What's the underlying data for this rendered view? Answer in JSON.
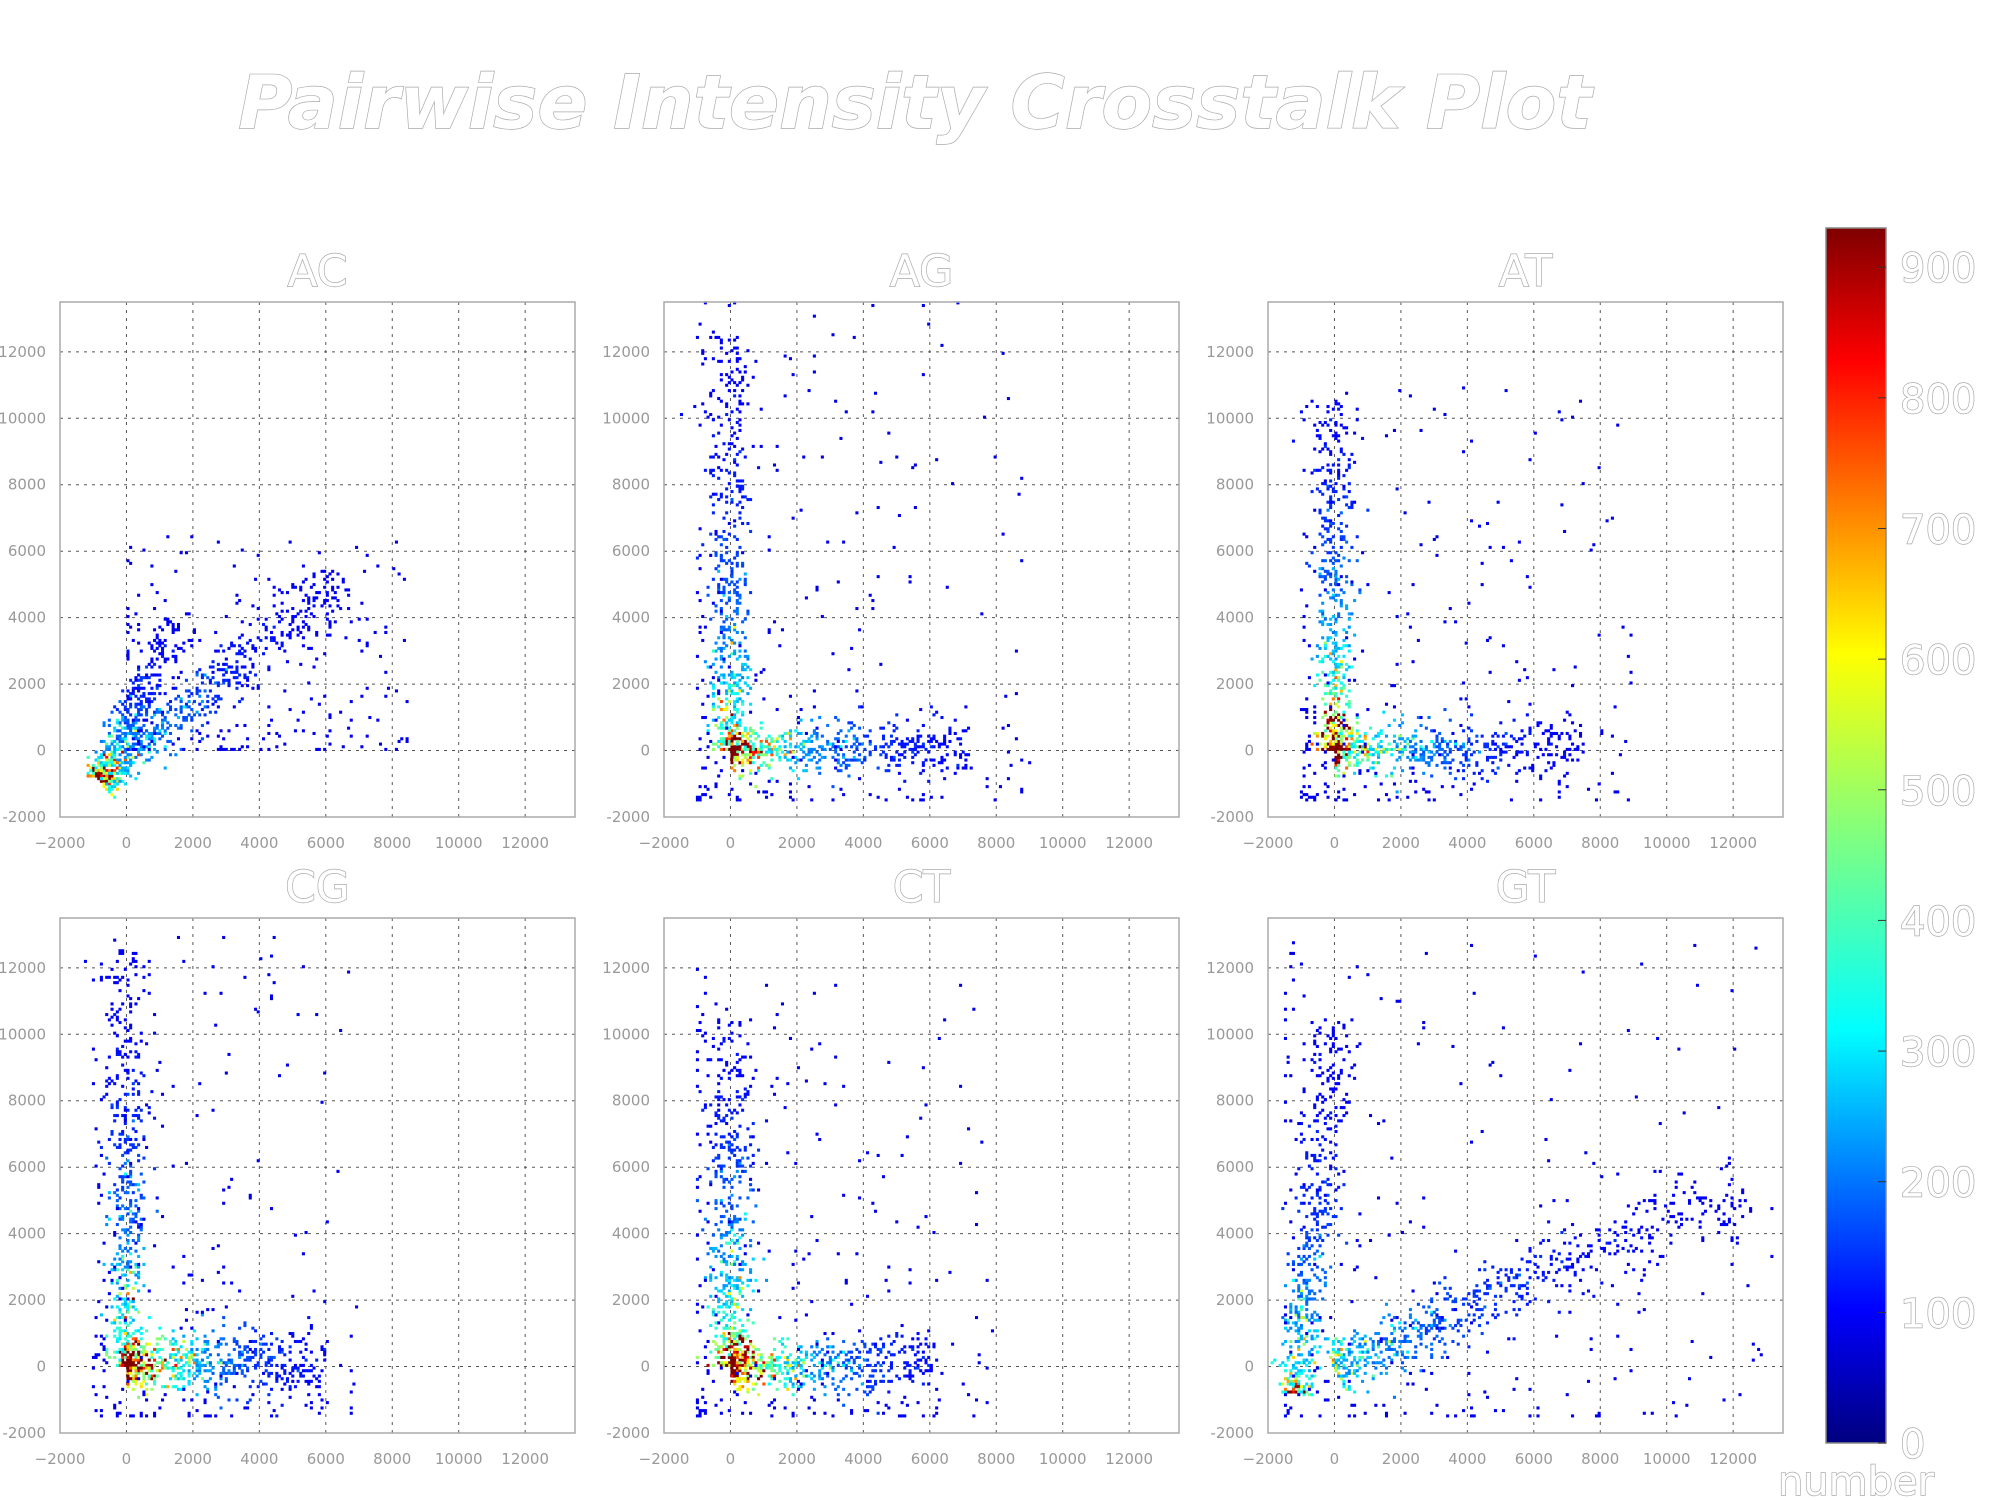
{
  "chart_data": {
    "type": "heatmap",
    "title": "Pairwise Intensity Crosstalk Plot",
    "axis": {
      "xlim": [
        -2000,
        13500
      ],
      "ylim": [
        -2000,
        13500
      ],
      "xticks": [
        -2000,
        0,
        2000,
        4000,
        6000,
        8000,
        10000,
        12000
      ],
      "yticks": [
        -2000,
        0,
        2000,
        4000,
        6000,
        8000,
        10000,
        12000
      ],
      "xtick_labels": [
        "−2000",
        "0",
        "2000",
        "4000",
        "6000",
        "8000",
        "10000",
        "12000"
      ],
      "ytick_labels": [
        "-2000",
        "0",
        "2000",
        "4000",
        "6000",
        "8000",
        "10000",
        "12000"
      ],
      "grid": true
    },
    "colorbar": {
      "label": "number",
      "range": [
        0,
        930
      ],
      "ticks": [
        0,
        100,
        200,
        300,
        400,
        500,
        600,
        700,
        800,
        900
      ],
      "tick_labels": [
        "0",
        "100",
        "200",
        "300",
        "400",
        "500",
        "600",
        "700",
        "800",
        "900"
      ],
      "colormap": "jet"
    },
    "panels": [
      {
        "title": "AC",
        "arms": [
          {
            "from": [
              -800,
              -900
            ],
            "to": [
              1500,
              3900
            ],
            "peak": 420,
            "spread": 220,
            "count": 400
          },
          {
            "from": [
              -800,
              -900
            ],
            "to": [
              6500,
              5200
            ],
            "peak": 380,
            "spread": 300,
            "count": 560
          }
        ],
        "sparse_extent": [
          [
            0,
            8500
          ],
          [
            0,
            6500
          ]
        ]
      },
      {
        "title": "AG",
        "arms": [
          {
            "from": [
              0,
              0
            ],
            "to": [
              0,
              12500
            ],
            "peak": 480,
            "spread": 260,
            "count": 520
          },
          {
            "from": [
              0,
              0
            ],
            "to": [
              7200,
              100
            ],
            "peak": 700,
            "spread": 300,
            "count": 520
          }
        ],
        "sparse_extent": [
          [
            -1000,
            9000
          ],
          [
            -1500,
            13500
          ]
        ]
      },
      {
        "title": "AT",
        "arms": [
          {
            "from": [
              0,
              0
            ],
            "to": [
              0,
              10500
            ],
            "peak": 760,
            "spread": 240,
            "count": 500
          },
          {
            "from": [
              0,
              0
            ],
            "to": [
              7500,
              100
            ],
            "peak": 560,
            "spread": 340,
            "count": 520
          }
        ],
        "sparse_extent": [
          [
            -1000,
            9000
          ],
          [
            -1500,
            11000
          ]
        ]
      },
      {
        "title": "CG",
        "arms": [
          {
            "from": [
              0,
              0
            ],
            "to": [
              0,
              12500
            ],
            "peak": 520,
            "spread": 240,
            "count": 520
          },
          {
            "from": [
              0,
              0
            ],
            "to": [
              6000,
              200
            ],
            "peak": 820,
            "spread": 380,
            "count": 560
          }
        ],
        "sparse_extent": [
          [
            -1000,
            7000
          ],
          [
            -1500,
            13000
          ]
        ]
      },
      {
        "title": "CT",
        "arms": [
          {
            "from": [
              0,
              0
            ],
            "to": [
              0,
              10500
            ],
            "peak": 640,
            "spread": 300,
            "count": 520
          },
          {
            "from": [
              0,
              0
            ],
            "to": [
              6200,
              100
            ],
            "peak": 860,
            "spread": 300,
            "count": 520
          }
        ],
        "sparse_extent": [
          [
            -1000,
            8000
          ],
          [
            -1500,
            12000
          ]
        ]
      },
      {
        "title": "GT",
        "arms": [
          {
            "from": [
              -1200,
              -800
            ],
            "to": [
              0,
              10500
            ],
            "peak": 440,
            "spread": 260,
            "count": 500
          },
          {
            "from": [
              0,
              0
            ],
            "to": [
              12300,
              5300
            ],
            "peak": 300,
            "spread": 380,
            "count": 640
          }
        ],
        "sparse_extent": [
          [
            -1500,
            13500
          ],
          [
            -1500,
            13000
          ]
        ]
      }
    ]
  }
}
